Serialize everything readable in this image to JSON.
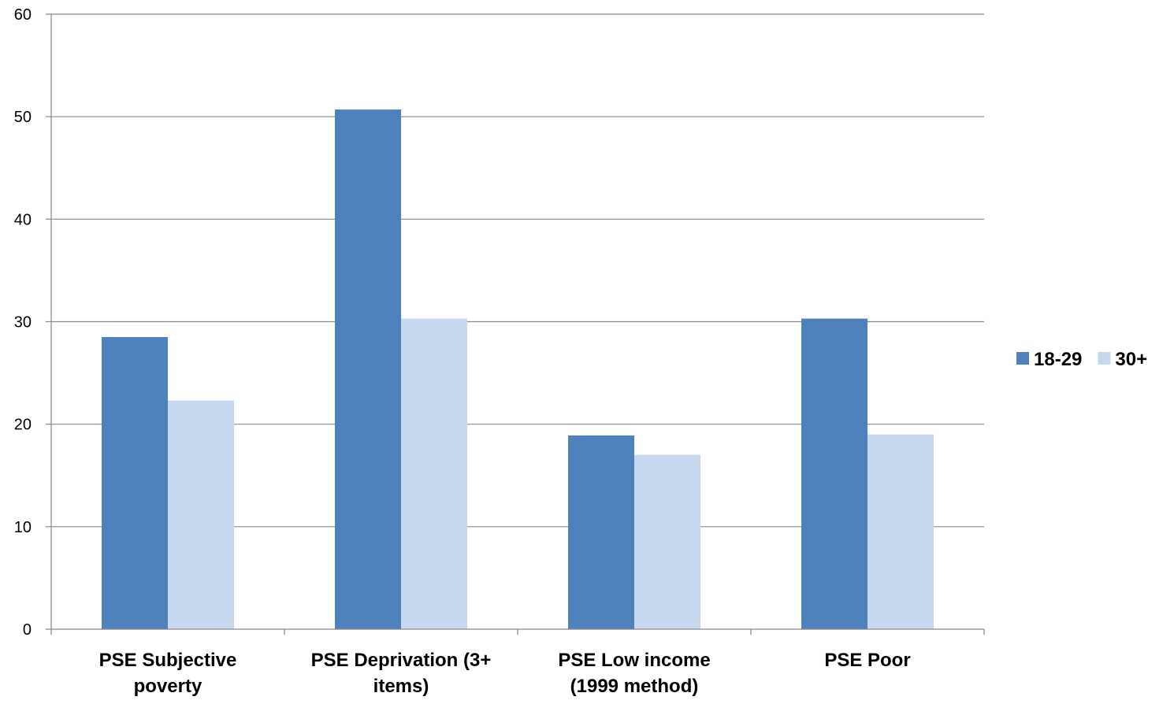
{
  "chart_data": {
    "type": "bar",
    "categories": [
      [
        "PSE Subjective",
        "poverty"
      ],
      [
        "PSE Deprivation (3+",
        "items)"
      ],
      [
        "PSE Low income",
        "(1999 method)"
      ],
      [
        "PSE Poor"
      ]
    ],
    "series": [
      {
        "name": "18-29",
        "color": "#4f81bd",
        "values": [
          28.5,
          50.7,
          18.9,
          30.3
        ]
      },
      {
        "name": "30+",
        "color": "#c6d9f1",
        "values": [
          22.3,
          30.3,
          17.0,
          19.0
        ]
      }
    ],
    "ylim": [
      0,
      60
    ],
    "yticks": [
      0,
      10,
      20,
      30,
      40,
      50,
      60
    ],
    "grid": true,
    "legend_position": "right",
    "colors": {
      "gridline": "#868686",
      "axis": "#868686"
    }
  }
}
